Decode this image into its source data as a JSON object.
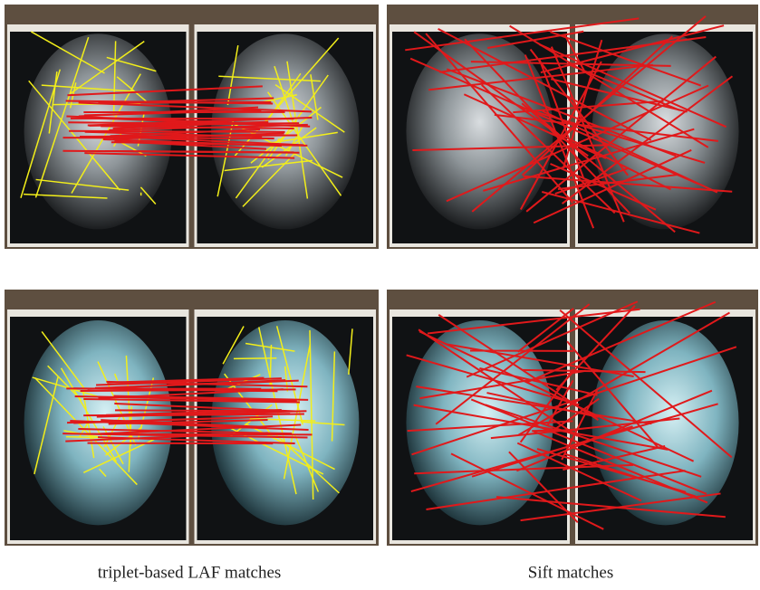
{
  "captions": [
    "triplet-based LAF matches",
    "Sift matches"
  ]
}
